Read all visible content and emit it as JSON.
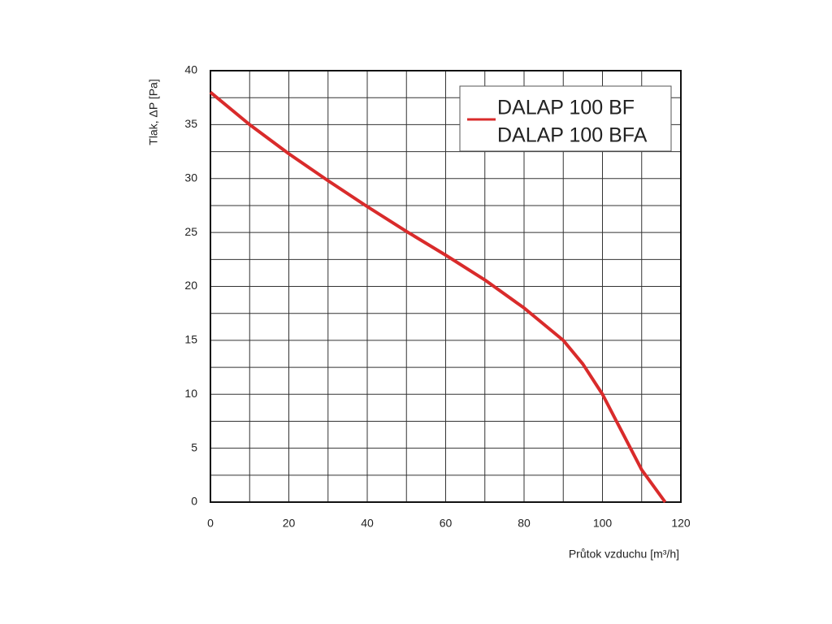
{
  "chart_data": {
    "type": "line",
    "x_label": "Průtok vzduchu [m³/h]",
    "y_label": "Tlak, ΔP [Pa]",
    "series": [
      {
        "name": [
          "DALAP 100 BF",
          "DALAP 100 BFA"
        ],
        "color": "#d92b2b",
        "x": [
          0,
          10,
          20,
          30,
          40,
          50,
          60,
          70,
          80,
          90,
          95,
          100,
          105,
          110,
          116
        ],
        "values": [
          38,
          35,
          32.3,
          29.8,
          27.4,
          25.1,
          22.9,
          20.6,
          18,
          15,
          12.8,
          10,
          6.5,
          3,
          0
        ]
      }
    ],
    "xlim": [
      0,
      120
    ],
    "xticks": [
      0,
      20,
      40,
      60,
      80,
      100,
      120
    ],
    "x_minor_ticks": [
      10,
      30,
      50,
      70,
      90,
      110
    ],
    "ylim": [
      0,
      40
    ],
    "yticks": [
      0,
      5,
      10,
      15,
      20,
      25,
      30,
      35,
      40
    ],
    "y_minor_ticks": [
      2.5,
      7.5,
      12.5,
      17.5,
      22.5,
      27.5,
      32.5,
      37.5
    ],
    "grid": true,
    "legend": "upper right"
  }
}
